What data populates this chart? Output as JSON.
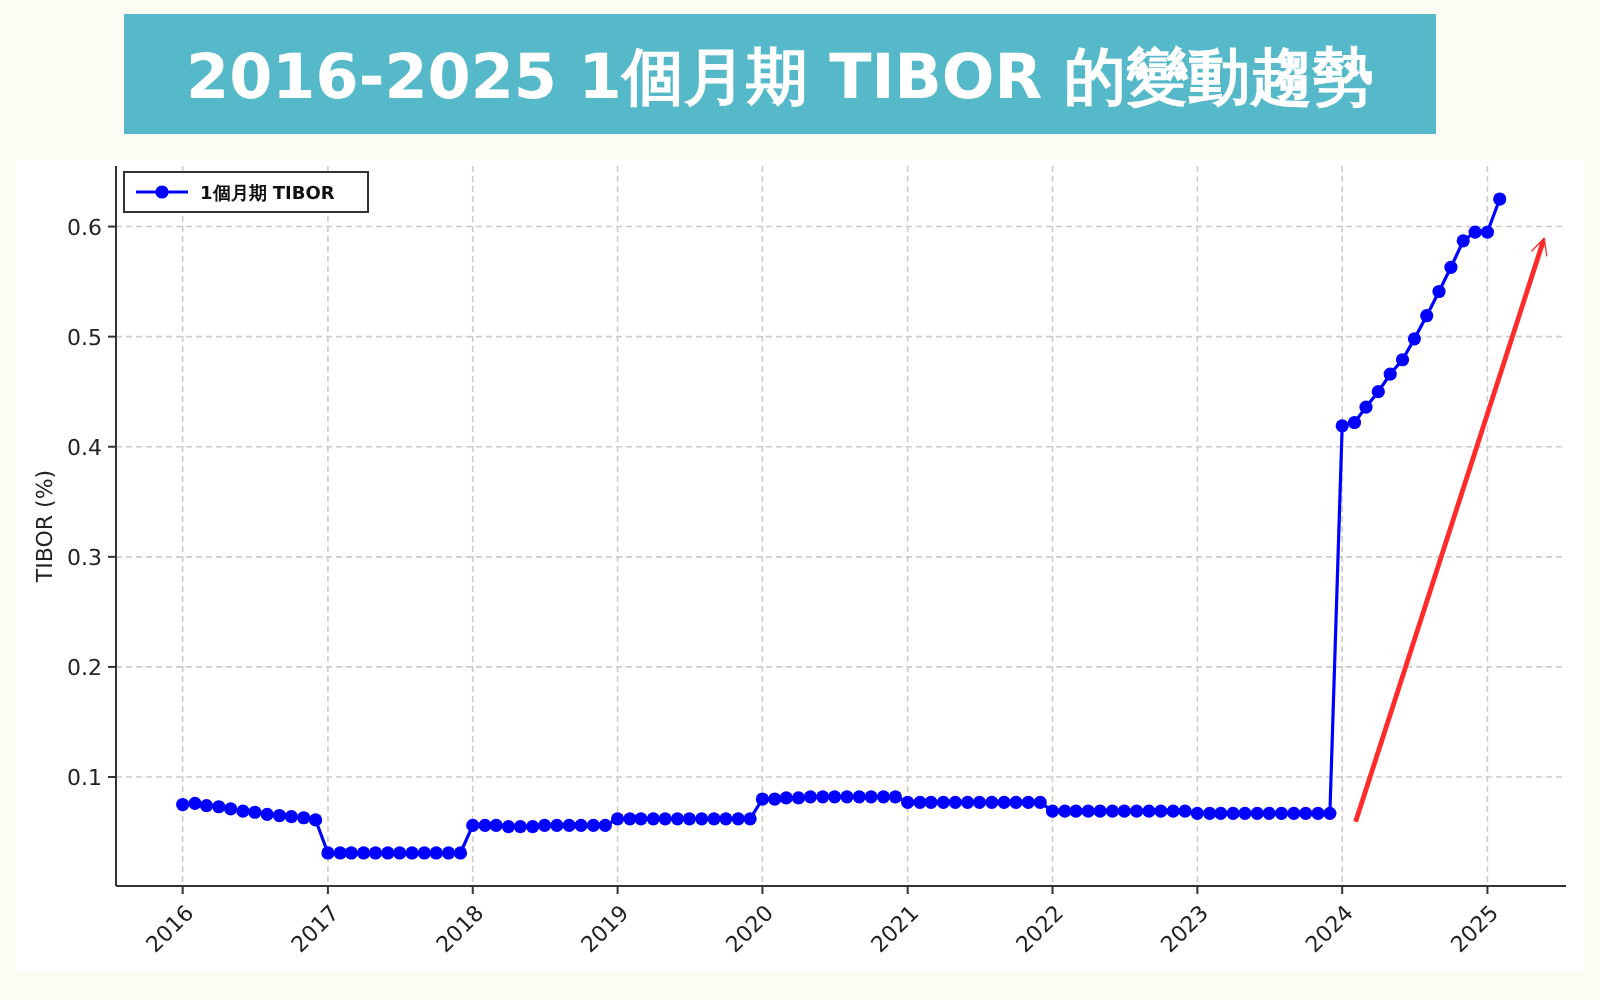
{
  "chart_data": {
    "type": "line",
    "title": "2016-2025 1個月期 TIBOR 的變動趨勢",
    "ylabel": "TIBOR (%)",
    "x": [
      "2016-01",
      "2016-02",
      "2016-03",
      "2016-04",
      "2016-05",
      "2016-06",
      "2016-07",
      "2016-08",
      "2016-09",
      "2016-10",
      "2016-11",
      "2016-12",
      "2017-01",
      "2017-02",
      "2017-03",
      "2017-04",
      "2017-05",
      "2017-06",
      "2017-07",
      "2017-08",
      "2017-09",
      "2017-10",
      "2017-11",
      "2017-12",
      "2018-01",
      "2018-02",
      "2018-03",
      "2018-04",
      "2018-05",
      "2018-06",
      "2018-07",
      "2018-08",
      "2018-09",
      "2018-10",
      "2018-11",
      "2018-12",
      "2019-01",
      "2019-02",
      "2019-03",
      "2019-04",
      "2019-05",
      "2019-06",
      "2019-07",
      "2019-08",
      "2019-09",
      "2019-10",
      "2019-11",
      "2019-12",
      "2020-01",
      "2020-02",
      "2020-03",
      "2020-04",
      "2020-05",
      "2020-06",
      "2020-07",
      "2020-08",
      "2020-09",
      "2020-10",
      "2020-11",
      "2020-12",
      "2021-01",
      "2021-02",
      "2021-03",
      "2021-04",
      "2021-05",
      "2021-06",
      "2021-07",
      "2021-08",
      "2021-09",
      "2021-10",
      "2021-11",
      "2021-12",
      "2022-01",
      "2022-02",
      "2022-03",
      "2022-04",
      "2022-05",
      "2022-06",
      "2022-07",
      "2022-08",
      "2022-09",
      "2022-10",
      "2022-11",
      "2022-12",
      "2023-01",
      "2023-02",
      "2023-03",
      "2023-04",
      "2023-05",
      "2023-06",
      "2023-07",
      "2023-08",
      "2023-09",
      "2023-10",
      "2023-11",
      "2023-12",
      "2024-01",
      "2024-02",
      "2024-03",
      "2024-04",
      "2024-05",
      "2024-06",
      "2024-07",
      "2024-08",
      "2024-09",
      "2024-10",
      "2024-11",
      "2024-12",
      "2025-01",
      "2025-02"
    ],
    "series": [
      {
        "name": "1個月期 TIBOR",
        "color": "#0000ff",
        "values": [
          0.075,
          0.076,
          0.074,
          0.073,
          0.071,
          0.069,
          0.068,
          0.066,
          0.065,
          0.064,
          0.063,
          0.061,
          0.031,
          0.031,
          0.031,
          0.031,
          0.031,
          0.031,
          0.031,
          0.031,
          0.031,
          0.031,
          0.031,
          0.031,
          0.056,
          0.056,
          0.056,
          0.055,
          0.055,
          0.055,
          0.056,
          0.056,
          0.056,
          0.056,
          0.056,
          0.056,
          0.062,
          0.062,
          0.062,
          0.062,
          0.062,
          0.062,
          0.062,
          0.062,
          0.062,
          0.062,
          0.062,
          0.062,
          0.08,
          0.08,
          0.081,
          0.081,
          0.082,
          0.082,
          0.082,
          0.082,
          0.082,
          0.082,
          0.082,
          0.082,
          0.077,
          0.077,
          0.077,
          0.077,
          0.077,
          0.077,
          0.077,
          0.077,
          0.077,
          0.077,
          0.077,
          0.077,
          0.069,
          0.069,
          0.069,
          0.069,
          0.069,
          0.069,
          0.069,
          0.069,
          0.069,
          0.069,
          0.069,
          0.069,
          0.067,
          0.067,
          0.067,
          0.067,
          0.067,
          0.067,
          0.067,
          0.067,
          0.067,
          0.067,
          0.067,
          0.067,
          0.419,
          0.422,
          0.436,
          0.45,
          0.466,
          0.479,
          0.498,
          0.519,
          0.541,
          0.563,
          0.587,
          0.595,
          0.595,
          0.625
        ]
      }
    ],
    "xlim": [
      "2015-07-17",
      "2025-07-18"
    ],
    "xticks": [
      {
        "value": "2016",
        "label": "2016"
      },
      {
        "value": "2017",
        "label": "2017"
      },
      {
        "value": "2018",
        "label": "2018"
      },
      {
        "value": "2019",
        "label": "2019"
      },
      {
        "value": "2020",
        "label": "2020"
      },
      {
        "value": "2021",
        "label": "2021"
      },
      {
        "value": "2022",
        "label": "2022"
      },
      {
        "value": "2023",
        "label": "2023"
      },
      {
        "value": "2024",
        "label": "2024"
      },
      {
        "value": "2025",
        "label": "2025"
      }
    ],
    "ylim": [
      0.001,
      0.655
    ],
    "yticks": [
      0.1,
      0.2,
      0.3,
      0.4,
      0.5,
      0.6
    ],
    "grid": true,
    "legend": "top left",
    "marker": "circle",
    "line_style": "solid"
  }
}
